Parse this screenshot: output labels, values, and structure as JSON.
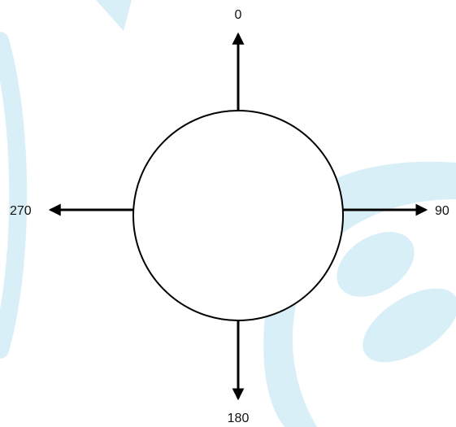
{
  "diagram": {
    "labels": {
      "top": "0",
      "right": "90",
      "bottom": "180",
      "left": "270"
    },
    "colors": {
      "stroke": "#000000",
      "circle_fill": "#ffffff",
      "watermark": "#d9eff8",
      "background": "#ffffff"
    }
  }
}
